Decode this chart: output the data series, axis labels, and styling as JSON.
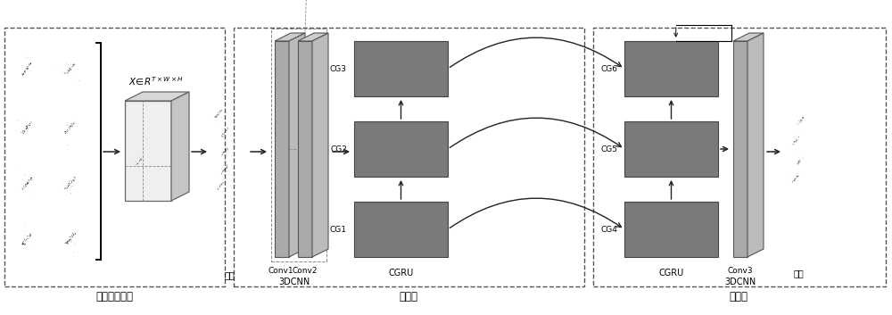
{
  "bg_color": "#ffffff",
  "section1_label": "构建时空数据",
  "section2_label": "编码器",
  "section3_label": "预测器",
  "cg_labels_enc": [
    "CG1",
    "CG2",
    "CG3"
  ],
  "cg_labels_dec": [
    "CG4",
    "CG5",
    "CG6"
  ],
  "conv_labels_enc": [
    "Conv1",
    "Conv2"
  ],
  "conv_label_dec": "Conv3",
  "sub_label_input": "输入",
  "sub_label_3dcnn_enc": "3DCNN",
  "sub_label_cgru_enc": "CGRU",
  "sub_label_cgru_dec": "CGRU",
  "sub_label_3dcnn_dec": "3DCNN",
  "sub_label_output": "输出",
  "gray_block": "#7a7a7a",
  "gray_slab": "#999999",
  "gray_slab_top": "#bbbbbb",
  "gray_slab_right": "#b0b0b0",
  "cube_face": "#e0e0e0",
  "cube_top": "#d0d0d0",
  "cube_right": "#c0c0c0",
  "dash_color": "#555555",
  "arrow_color": "#222222",
  "label_fontsize": 8.5,
  "small_fontsize": 7.0
}
